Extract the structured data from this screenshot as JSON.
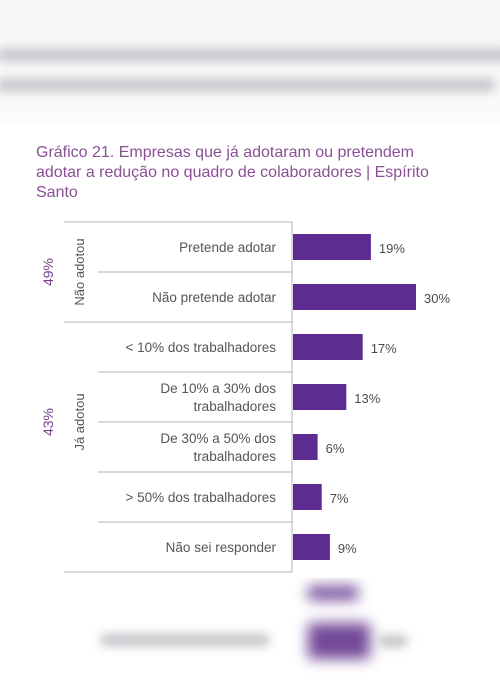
{
  "chart_data": {
    "type": "bar",
    "orientation": "horizontal",
    "title_lines": [
      "Gráfico 21. Empresas que já adotaram ou pretendem",
      "adotar a redução no quadro de colaboradores | Espírito",
      "Santo"
    ],
    "categories": [
      [
        "Pretende adotar"
      ],
      [
        "Não pretende adotar"
      ],
      [
        "< 10% dos trabalhadores"
      ],
      [
        "De 10% a 30% dos",
        "trabalhadores"
      ],
      [
        "De 30% a 50% dos",
        "trabalhadores"
      ],
      [
        "> 50% dos trabalhadores"
      ],
      [
        "Não sei responder"
      ]
    ],
    "values": [
      19,
      30,
      17,
      13,
      6,
      7,
      9
    ],
    "value_labels": [
      "19%",
      "30%",
      "17%",
      "13%",
      "6%",
      "7%",
      "9%"
    ],
    "groups": [
      {
        "label": "Não adotou",
        "percent": "49%",
        "rows": [
          0,
          1
        ]
      },
      {
        "label": "Já adotou",
        "percent": "43%",
        "rows": [
          2,
          3,
          4,
          5
        ]
      }
    ],
    "bar_color": "#5c2c91",
    "title_color": "#8a4f95"
  }
}
